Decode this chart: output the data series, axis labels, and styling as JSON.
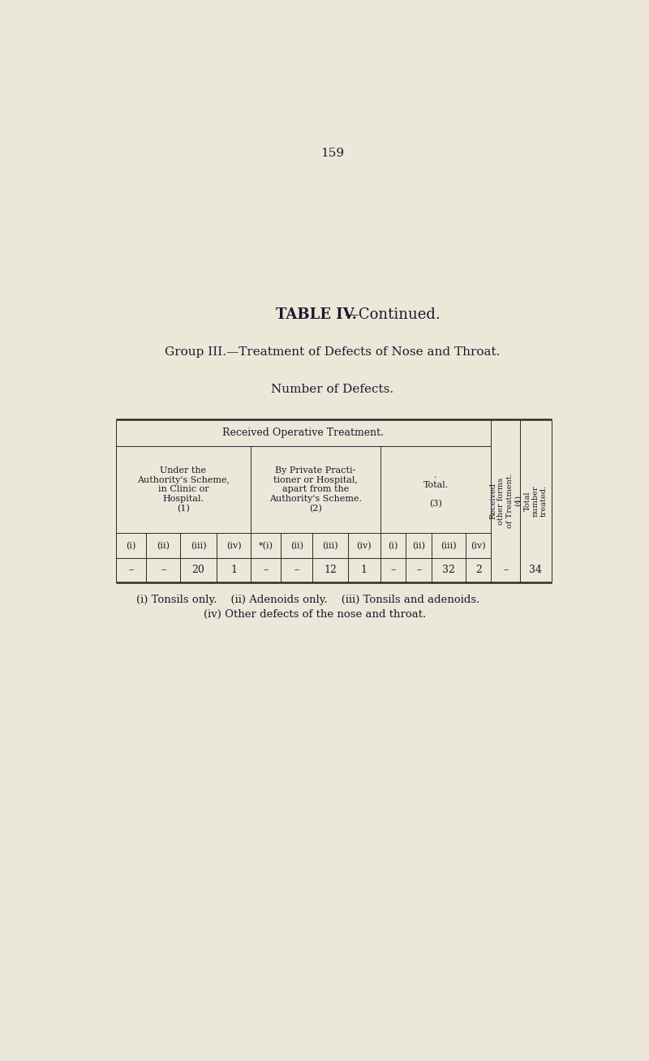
{
  "page_number": "159",
  "title_bold": "TABLE IV.",
  "title_rest": "—Continued.",
  "subtitle": "Group III.—Treatment of Defects of Nose and Throat.",
  "sub_subtitle": "Number of Defects.",
  "bg_color": "#ece8d9",
  "text_color": "#1a1a2e",
  "footnote_line1": "(i) Tonsils only.    (ii) Adenoids only.    (iii) Tonsils and adenoids.",
  "footnote_line2": "(iv) Other defects of the nose and throat.",
  "data_row": [
    "–",
    "–",
    "20",
    "1",
    "–",
    "–",
    "12",
    "1",
    "–",
    "–",
    "32",
    "2",
    "–",
    "34"
  ]
}
